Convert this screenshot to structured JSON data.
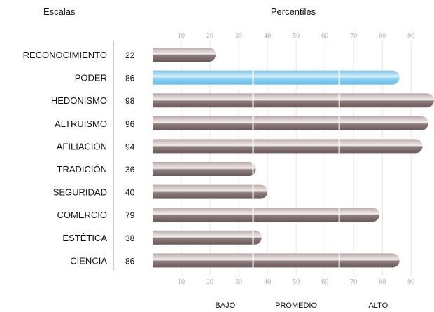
{
  "header": {
    "left": "Escalas",
    "center": "Percentiles"
  },
  "colors": {
    "normal_bar": "#8a7878",
    "highlight_bar": "#87cdee",
    "grid": "#e6e6e6",
    "separator": "#bbbbbb"
  },
  "chart_data": {
    "type": "bar",
    "orientation": "horizontal",
    "categories": [
      "RECONOCIMIENTO",
      "PODER",
      "HEDONISMO",
      "ALTRUISMO",
      "AFILIACIÓN",
      "TRADICIÓN",
      "SEGURIDAD",
      "COMERCIO",
      "ESTÉTICA",
      "CIENCIA"
    ],
    "values": [
      22,
      86,
      98,
      96,
      94,
      36,
      40,
      79,
      38,
      86
    ],
    "highlighted": [
      "PODER"
    ],
    "xlim": [
      0,
      98
    ],
    "xticks": [
      10,
      20,
      30,
      40,
      50,
      60,
      70,
      80,
      90
    ],
    "bands": [
      "BAJO",
      "PROMEDIO",
      "ALTO"
    ],
    "band_boundaries": [
      35,
      65
    ],
    "grid": true
  }
}
